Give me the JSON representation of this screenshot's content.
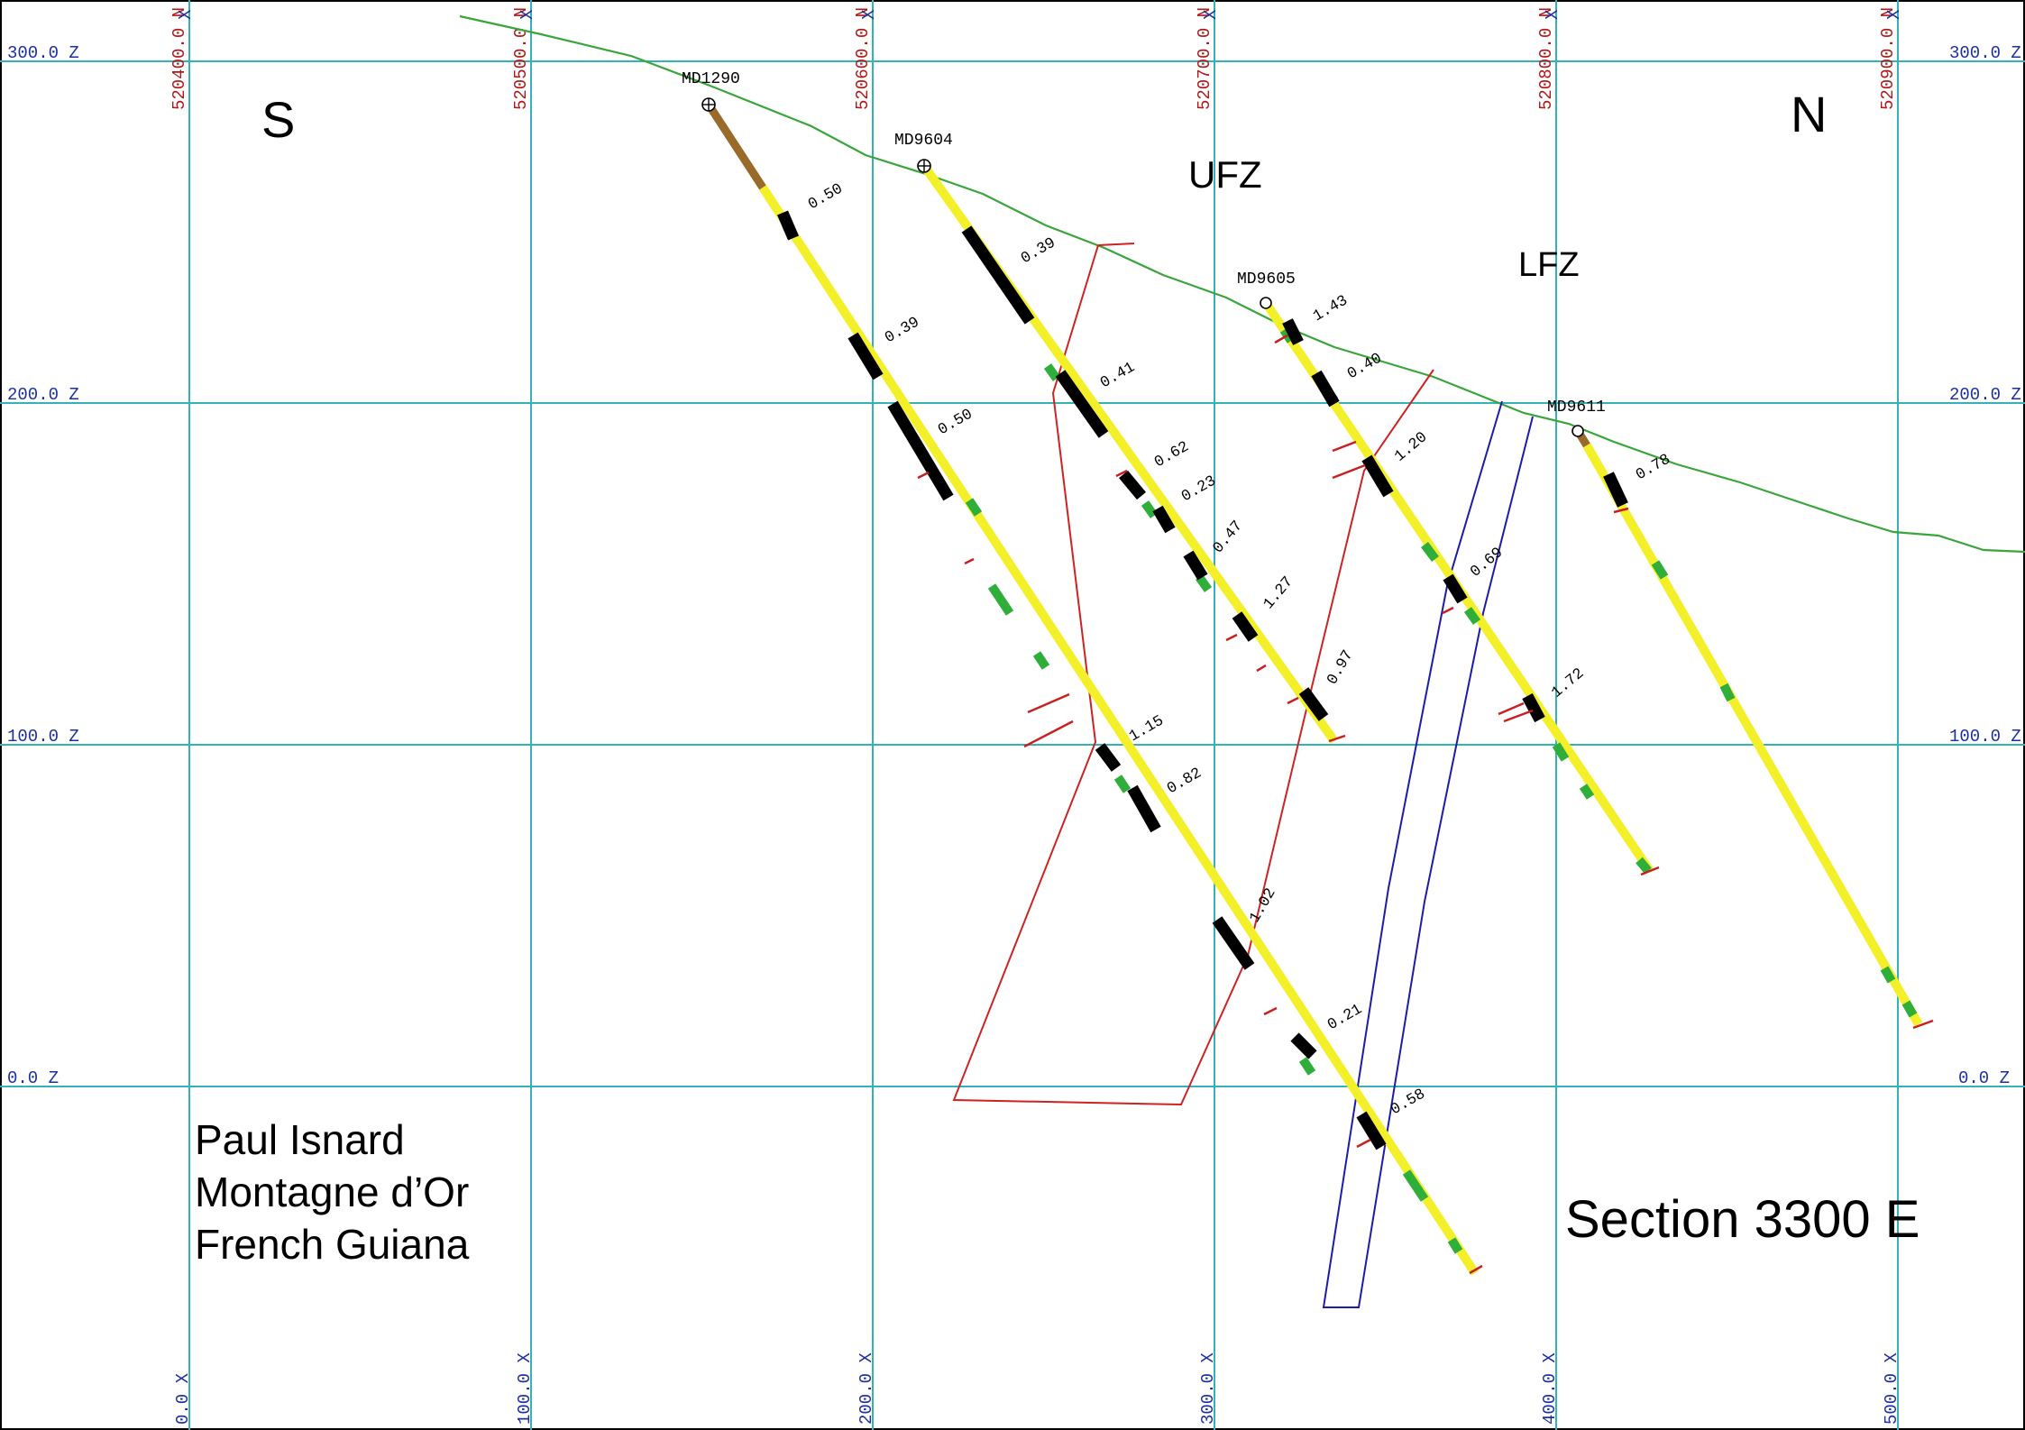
{
  "section_title": "Section 3300 E",
  "location": {
    "line1": "Paul Isnard",
    "line2": "Montagne d’Or",
    "line3": "French Guiana"
  },
  "compass": {
    "left": "S",
    "right": "N"
  },
  "zones": {
    "upper": "UFZ",
    "lower": "LFZ"
  },
  "elevation_labels": [
    "300.0  Z",
    "200.0  Z",
    "100.0  Z",
    "0.0  Z"
  ],
  "northing_labels": [
    "520400.0 N",
    "520500.0 N",
    "520600.0 N",
    "520700.0 N",
    "520800.0 N",
    "520900.0 N"
  ],
  "x_labels": [
    "0.0  X",
    "100.0  X",
    "200.0  X",
    "300.0  X",
    "400.0  X",
    "500.0  X"
  ],
  "grid_x_marker": "X",
  "drillholes": [
    {
      "name": "MD1290",
      "grades": [
        "0.50",
        "0.39",
        "0.50",
        "1.15",
        "0.82",
        "1.02",
        "0.21",
        "0.58"
      ]
    },
    {
      "name": "MD9604",
      "grades": [
        "0.39",
        "0.41",
        "0.62",
        "0.23",
        "0.47",
        "1.27",
        "0.97"
      ]
    },
    {
      "name": "MD9605",
      "grades": [
        "1.43",
        "0.40",
        "1.20",
        "0.69",
        "1.72"
      ]
    },
    {
      "name": "MD9611",
      "grades": [
        "0.78"
      ]
    }
  ],
  "colors": {
    "grid": "#33b3b8",
    "topography": "#39a53a",
    "fault_red": "#cc2323",
    "fault_blue": "#1c1ca8",
    "drillhole": "#f3f02a",
    "mineralised_interval": "#000000"
  }
}
